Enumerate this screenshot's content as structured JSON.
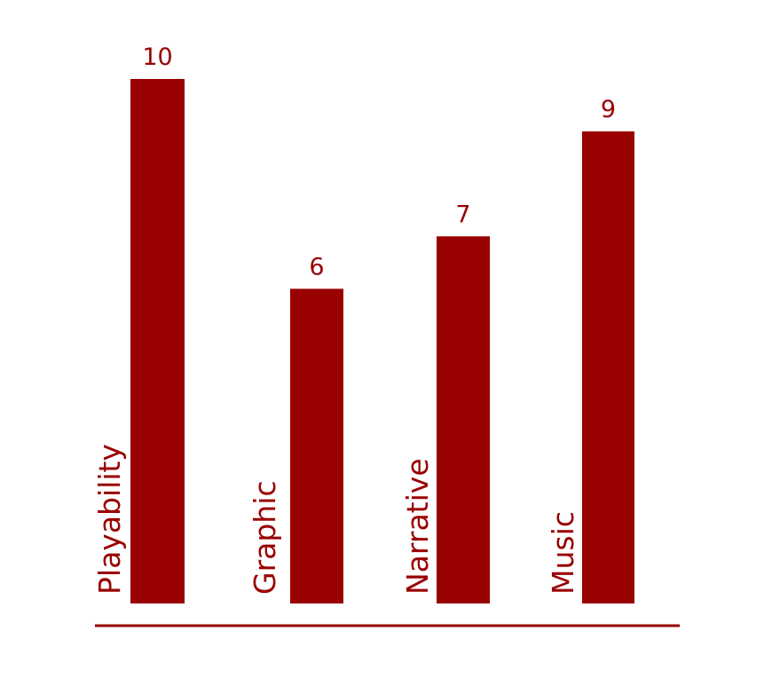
{
  "chart_data": {
    "type": "bar",
    "categories": [
      "Playability",
      "Graphic",
      "Narrative",
      "Music"
    ],
    "values": [
      10,
      6,
      7,
      9
    ],
    "title": "",
    "xlabel": "",
    "ylabel": "",
    "grid": false,
    "legend": "none",
    "value_labels": [
      "10",
      "6",
      "7",
      "9"
    ],
    "category_label_orientation": "vertical",
    "colors": {
      "bar": "#990000",
      "text": "#990000",
      "baseline": "#990000",
      "background": "#ffffff"
    }
  }
}
